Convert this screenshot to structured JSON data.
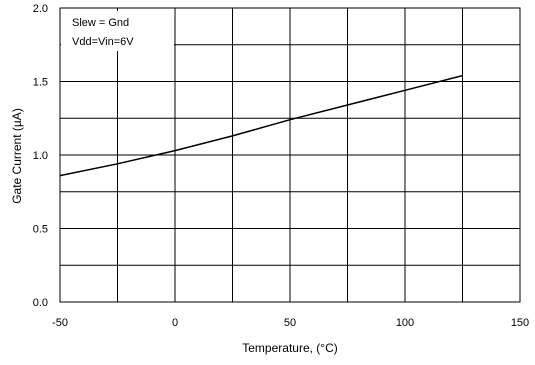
{
  "chart_data": {
    "type": "line",
    "title": "",
    "xlabel": "Temperature, (°C)",
    "ylabel": "Gate Current (µA)",
    "xlim": [
      -50,
      150
    ],
    "ylim": [
      0.0,
      2.0
    ],
    "x_ticks": [
      -50,
      0,
      50,
      100,
      150
    ],
    "x_tick_labels": [
      "-50",
      "0",
      "50",
      "100",
      "150"
    ],
    "x_minor_gridlines": [
      -25,
      25,
      75,
      125
    ],
    "y_ticks": [
      0.0,
      0.5,
      1.0,
      1.5,
      2.0
    ],
    "y_tick_labels": [
      "0.0",
      "0.5",
      "1.0",
      "1.5",
      "2.0"
    ],
    "y_minor_gridlines": [
      0.25,
      0.75,
      1.25,
      1.75
    ],
    "grid": true,
    "legend": "none",
    "annotations": [
      "Slew = Gnd",
      "Vdd=Vin=6V"
    ],
    "series": [
      {
        "color": "#000000",
        "x": [
          -50,
          -25,
          0,
          25,
          50,
          75,
          100,
          125
        ],
        "y": [
          0.86,
          0.94,
          1.03,
          1.13,
          1.24,
          1.34,
          1.44,
          1.54
        ]
      }
    ]
  }
}
